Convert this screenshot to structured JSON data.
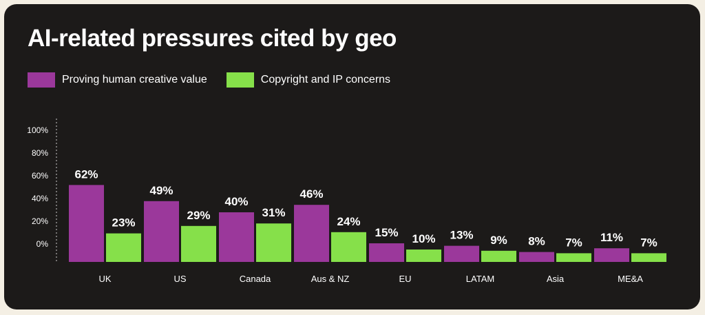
{
  "chart_data": {
    "type": "bar",
    "title": "AI-related pressures cited by geo",
    "categories": [
      "UK",
      "US",
      "Canada",
      "Aus & NZ",
      "EU",
      "LATAM",
      "Asia",
      "ME&A"
    ],
    "series": [
      {
        "name": "Proving human creative value",
        "color": "#9b389b",
        "values": [
          62,
          49,
          40,
          46,
          15,
          13,
          8,
          11
        ],
        "labels": [
          "62%",
          "49%",
          "40%",
          "46%",
          "15%",
          "13%",
          "8%",
          "11%"
        ]
      },
      {
        "name": "Copyright and IP concerns",
        "color": "#86e04a",
        "values": [
          23,
          29,
          31,
          24,
          10,
          9,
          7,
          7
        ],
        "labels": [
          "23%",
          "29%",
          "31%",
          "24%",
          "10%",
          "9%",
          "7%",
          "7%"
        ]
      }
    ],
    "yticks": [
      "0%",
      "20%",
      "40%",
      "60%",
      "80%",
      "100%"
    ],
    "ylim": [
      0,
      100
    ],
    "grid": false,
    "legend_position": "top-left",
    "xlabel": "",
    "ylabel": ""
  }
}
